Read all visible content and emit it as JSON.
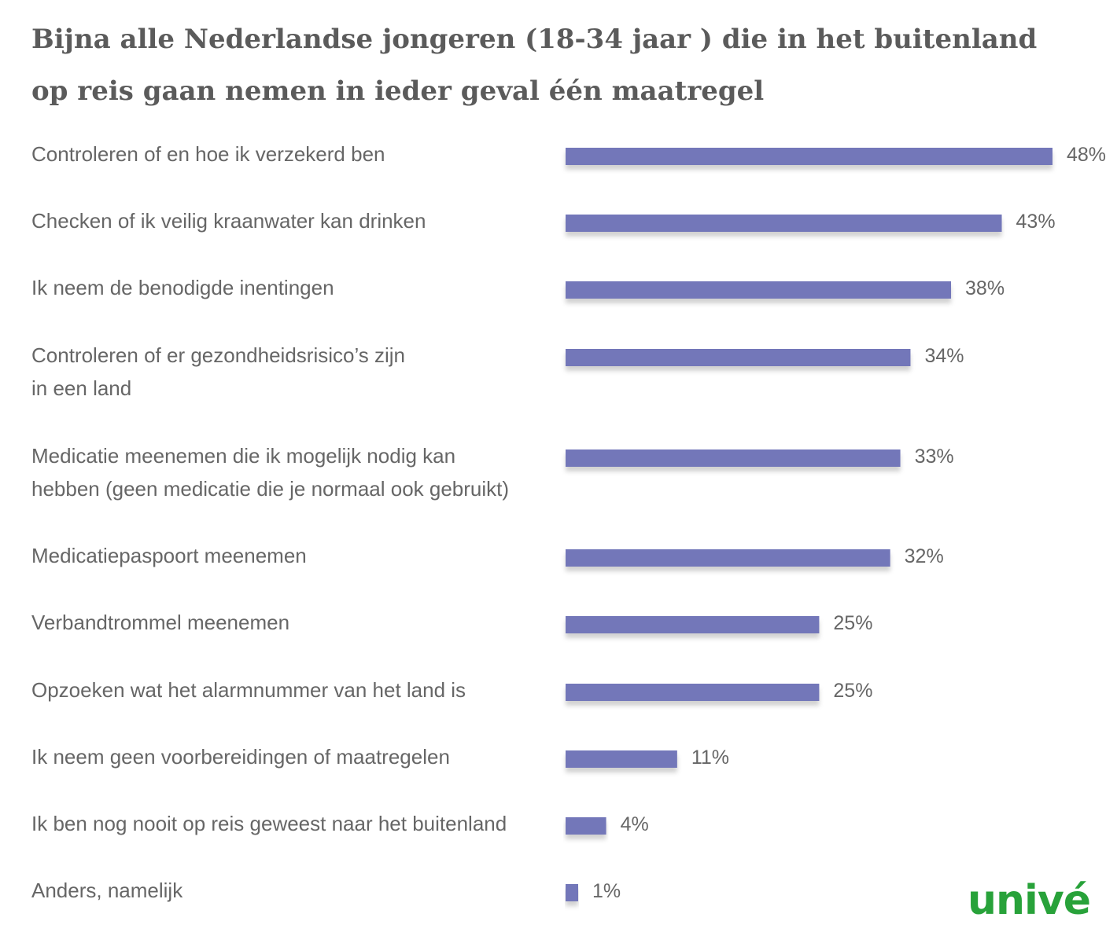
{
  "title_line_1": "Bijna alle Nederlandse jongeren (18-34 jaar ) die in het buitenland",
  "title_line_2": "op reis gaan nemen in ieder geval één maatregel",
  "logo_text": "univé",
  "colors": {
    "bar": "#7377b9",
    "text": "#666666",
    "logo": "#28a23a"
  },
  "chart_data": {
    "type": "bar",
    "orientation": "horizontal",
    "categories": [
      [
        "Controleren of en hoe ik verzekerd ben"
      ],
      [
        "Checken of ik veilig kraanwater kan drinken"
      ],
      [
        "Ik neem de benodigde inentingen"
      ],
      [
        "Controleren of er gezondheidsrisico’s zijn",
        "in een land"
      ],
      [
        "Medicatie meenemen die ik mogelijk nodig kan",
        "hebben (geen medicatie die je normaal ook gebruikt)"
      ],
      [
        "Medicatiepaspoort meenemen"
      ],
      [
        "Verbandtrommel meenemen"
      ],
      [
        "Opzoeken wat het alarmnummer van het land is"
      ],
      [
        "Ik neem geen voorbereidingen of maatregelen"
      ],
      [
        "Ik ben nog nooit op reis geweest naar het buitenland"
      ],
      [
        "Anders, namelijk"
      ]
    ],
    "values": [
      48,
      43,
      38,
      34,
      33,
      32,
      25,
      25,
      11,
      4,
      1
    ],
    "value_labels": [
      "48%",
      "43%",
      "38%",
      "34%",
      "33%",
      "32%",
      "25%",
      "25%",
      "11%",
      "4%",
      "1%"
    ],
    "unit": "%",
    "xlim": [
      0,
      48
    ],
    "grid": false,
    "legend": "none"
  }
}
